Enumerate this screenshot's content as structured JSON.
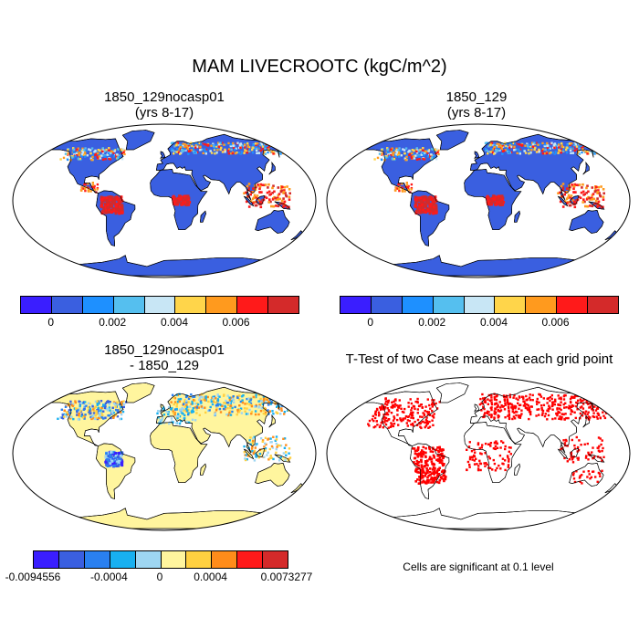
{
  "title": "MAM LIVECROOTC (kgC/m^2)",
  "panels": {
    "top_left": {
      "title_line1": "1850_129nocasp01",
      "title_line2": "(yrs 8-17)"
    },
    "top_right": {
      "title_line1": "1850_129",
      "title_line2": "(yrs 8-17)"
    },
    "bottom_left": {
      "title_line1": "1850_129nocasp01",
      "title_line2": "- 1850_129"
    },
    "bottom_right": {
      "title": "T-Test of two Case means at each grid point",
      "note": "Cells are significant at 0.1 level"
    }
  },
  "colorbar_abs": {
    "colors": [
      "#3a1eff",
      "#3a5fe0",
      "#1e90ff",
      "#55bfef",
      "#c8e6f5",
      "#ffd54a",
      "#ff9a1e",
      "#ff1a1a",
      "#d42a2a"
    ],
    "labels": [
      "0",
      "0.002",
      "0.004",
      "0.006"
    ]
  },
  "colorbar_diff": {
    "colors": [
      "#3a1eff",
      "#3a5fe0",
      "#2a80f0",
      "#18b0f0",
      "#9ed6f2",
      "#fff59e",
      "#ffd040",
      "#ff8c1a",
      "#ff1a1a",
      "#d42a2a"
    ],
    "labels": [
      "-0.0094556",
      "-0.0004",
      "0",
      "0.0004",
      "0.0073277"
    ]
  },
  "colors": {
    "land_base_abs": "#3a5fe0",
    "land_base_diff": "#fff59e",
    "significant": "#ff0000",
    "coast": "#000000"
  }
}
